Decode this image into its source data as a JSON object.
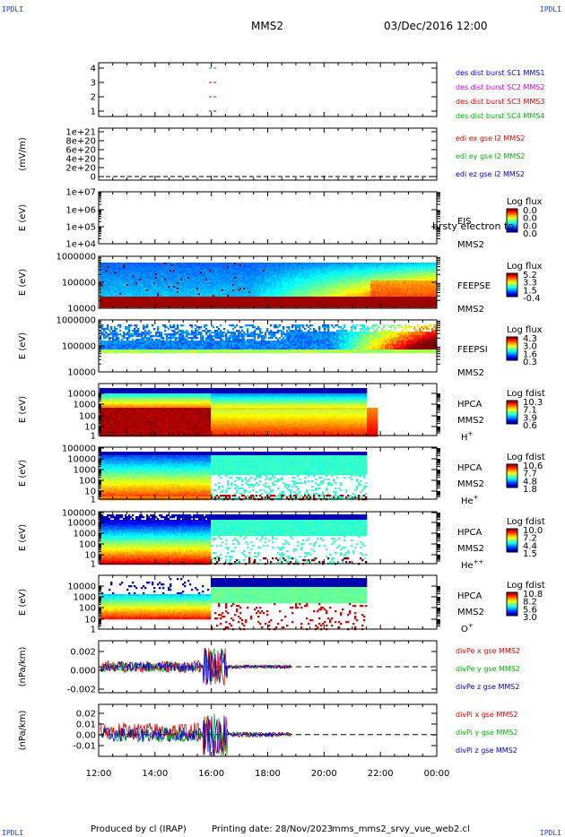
{
  "corner_label": "IPDLI",
  "header": {
    "spacecraft": "MMS2",
    "datetime": "03/Dec/2016 12:00"
  },
  "footer": {
    "produced_by": "Produced by cl (IRAP)",
    "printing_date": "Printing date: 28/Nov/2023",
    "filename": "mms_mms2_srvy_vue_web2.cl"
  },
  "time_axis": [
    "12:00",
    "14:00",
    "16:00",
    "18:00",
    "20:00",
    "22:00",
    "00:00"
  ],
  "colors": {
    "red": "#dd0000",
    "green": "#00b000",
    "blue": "#0000cc",
    "magenta": "#cc00cc"
  },
  "chart_data": [
    {
      "type": "line",
      "id": "panel1",
      "ylabel": "",
      "yticks": [
        "1",
        "2",
        "3",
        "4"
      ],
      "legend": [
        {
          "text": "des dist burst SC1 MMS1",
          "color": "#0000cc"
        },
        {
          "text": "des dist burst SC2 MMS2",
          "color": "#cc00cc"
        },
        {
          "text": "des dist burst SC3 MMS3",
          "color": "#dd0000"
        },
        {
          "text": "des dist burst SC4 MMS4",
          "color": "#00b000"
        }
      ]
    },
    {
      "type": "line",
      "id": "panel2",
      "ylabel": "(mV/m)",
      "yticks": [
        "0",
        "2e+20",
        "4e+20",
        "6e+20",
        "8e+20",
        "1e+21"
      ],
      "legend": [
        {
          "text": "edi ex gse l2 MMS2",
          "color": "#dd0000"
        },
        {
          "text": "edi ey gse l2 MMS2",
          "color": "#00b000"
        },
        {
          "text": "edi ez gse l2 MMS2",
          "color": "#0000cc"
        }
      ]
    },
    {
      "type": "heatmap",
      "id": "panel3",
      "ylabel": "E (eV)",
      "yticks": [
        "1e+04",
        "1e+05",
        "1e+06",
        "1e+07"
      ],
      "name": "EIS",
      "sc": "MMS2",
      "overlay_text": "brsty electron to",
      "cbar_title": "Log flux",
      "cbar_ticks": [
        "0.0",
        "0.0",
        "0.0",
        "0.0"
      ]
    },
    {
      "type": "heatmap",
      "id": "panel4",
      "ylabel": "E (eV)",
      "yticks": [
        "10000",
        "100000",
        "1000000"
      ],
      "name": "FEEPSE",
      "sc": "MMS2",
      "cbar_title": "Log flux",
      "cbar_ticks": [
        "5.2",
        "3.3",
        "1.5",
        "-0.4"
      ]
    },
    {
      "type": "heatmap",
      "id": "panel5",
      "ylabel": "E (eV)",
      "yticks": [
        "10000",
        "100000",
        "1000000"
      ],
      "name": "FEEPSI",
      "sc": "MMS2",
      "cbar_title": "Log flux",
      "cbar_ticks": [
        "4.3",
        "3.0",
        "1.6",
        "0.3"
      ]
    },
    {
      "type": "heatmap",
      "id": "panel6",
      "ylabel": "E (eV)",
      "yticks": [
        "1",
        "10",
        "100",
        "1000",
        "10000"
      ],
      "name": "HPCA",
      "sc": "MMS2",
      "species": "H",
      "charge": "+",
      "cbar_title": "Log fdist",
      "cbar_ticks": [
        "10.3",
        "7.1",
        "3.9",
        "0.6"
      ]
    },
    {
      "type": "heatmap",
      "id": "panel7",
      "ylabel": "E (eV)",
      "yticks": [
        "1",
        "10",
        "100",
        "1000",
        "10000",
        "100000"
      ],
      "name": "HPCA",
      "sc": "MMS2",
      "species": "He",
      "charge": "+",
      "cbar_title": "Log fdist",
      "cbar_ticks": [
        "10.6",
        "7.7",
        "4.8",
        "1.8"
      ]
    },
    {
      "type": "heatmap",
      "id": "panel8",
      "ylabel": "E (eV)",
      "yticks": [
        "1",
        "10",
        "100",
        "1000",
        "10000",
        "100000"
      ],
      "name": "HPCA",
      "sc": "MMS2",
      "species": "He",
      "charge": "++",
      "cbar_title": "Log fdist",
      "cbar_ticks": [
        "10.0",
        "7.2",
        "4.4",
        "1.5"
      ]
    },
    {
      "type": "heatmap",
      "id": "panel9",
      "ylabel": "E (eV)",
      "yticks": [
        "1",
        "10",
        "100",
        "1000",
        "10000"
      ],
      "name": "HPCA",
      "sc": "MMS2",
      "species": "O",
      "charge": "+",
      "cbar_title": "Log fdist",
      "cbar_ticks": [
        "10.8",
        "8.2",
        "5.6",
        "3.0"
      ]
    },
    {
      "type": "line",
      "id": "panel10",
      "ylabel": "(nPa/km)",
      "yticks": [
        "-0.002",
        "0.000",
        "0.002"
      ],
      "ylim": [
        -0.003,
        0.003
      ],
      "legend": [
        {
          "text": "divPe x gse MMS2",
          "color": "#dd0000"
        },
        {
          "text": "divPe y gse MMS2",
          "color": "#00b000"
        },
        {
          "text": "divPe z gse MMS2",
          "color": "#0000cc"
        }
      ]
    },
    {
      "type": "line",
      "id": "panel11",
      "ylabel": "(nPa/km)",
      "yticks": [
        "-0.01",
        "0.00",
        "0.01",
        "0.02"
      ],
      "ylim": [
        -0.018,
        0.025
      ],
      "legend": [
        {
          "text": "divPi x gse MMS2",
          "color": "#dd0000"
        },
        {
          "text": "divPi y gse MMS2",
          "color": "#00b000"
        },
        {
          "text": "divPi z gse MMS2",
          "color": "#0000cc"
        }
      ]
    }
  ]
}
